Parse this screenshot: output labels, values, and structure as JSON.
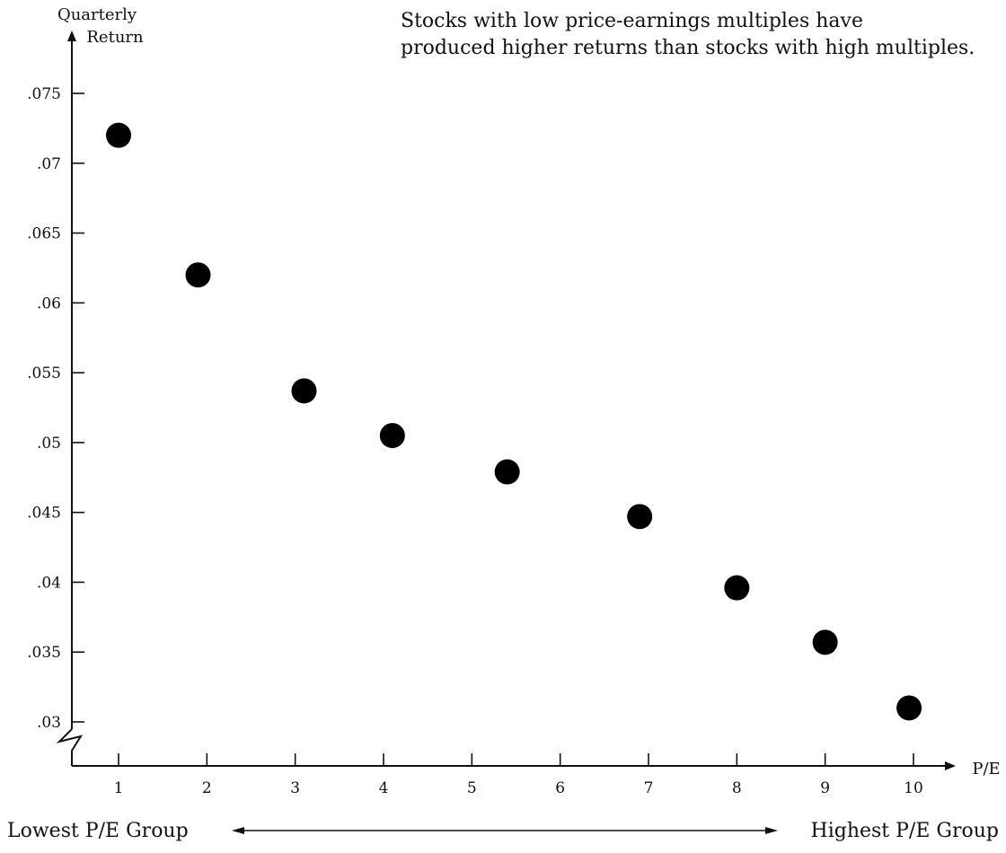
{
  "chart_data": {
    "type": "scatter",
    "title_lines": [
      "Stocks with low price-earnings multiples have",
      "produced higher returns than stocks with high multiples."
    ],
    "ylabel_lines": [
      "Quarterly",
      "Return"
    ],
    "xlabel": "P/E",
    "x": [
      1,
      2,
      3,
      4,
      5,
      6,
      7,
      8,
      9,
      10
    ],
    "x_tick_labels": [
      "1",
      "2",
      "3",
      "4",
      "5",
      "6",
      "7",
      "8",
      "9",
      "10"
    ],
    "points": [
      {
        "x": 1.0,
        "y": 0.072
      },
      {
        "x": 1.9,
        "y": 0.062
      },
      {
        "x": 3.1,
        "y": 0.0537
      },
      {
        "x": 4.1,
        "y": 0.0505
      },
      {
        "x": 5.4,
        "y": 0.0479
      },
      {
        "x": 6.9,
        "y": 0.0447
      },
      {
        "x": 8.0,
        "y": 0.0396
      },
      {
        "x": 9.0,
        "y": 0.0357
      },
      {
        "x": 9.95,
        "y": 0.031
      }
    ],
    "y_ticks": [
      0.075,
      0.07,
      0.065,
      0.06,
      0.055,
      0.05,
      0.045,
      0.04,
      0.035,
      0.03
    ],
    "y_tick_labels": [
      ".075",
      ".07",
      ".065",
      ".06",
      ".055",
      ".05",
      ".045",
      ".04",
      ".035",
      ".03"
    ],
    "ylim": [
      0.03,
      0.075
    ],
    "xlim": [
      1,
      10
    ],
    "y_axis_break": true,
    "grid": false,
    "legend": "none",
    "group_labels": {
      "left": "Lowest P/E Group",
      "right": "Highest P/E Group"
    },
    "colors": {
      "points": "#000000",
      "axes": "#111111",
      "text": "#111111"
    }
  }
}
